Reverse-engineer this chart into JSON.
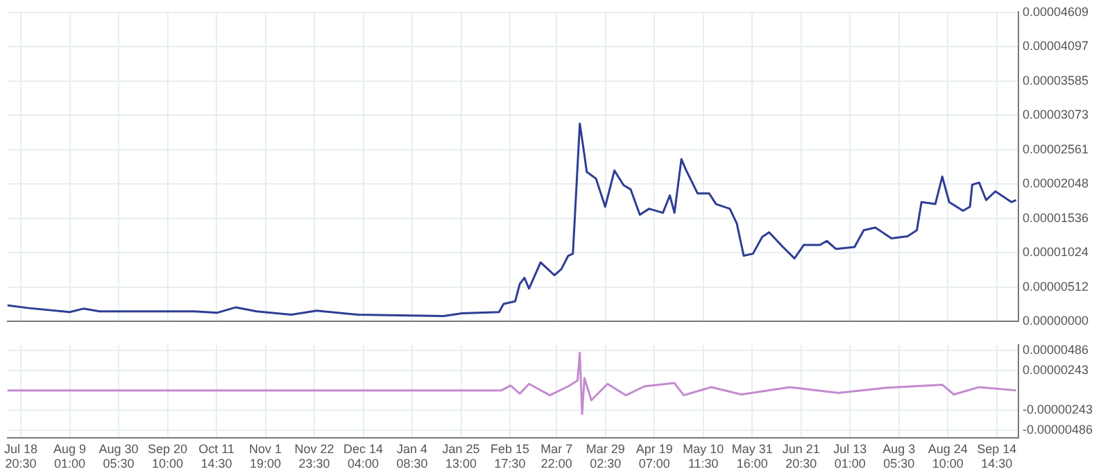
{
  "chart_data": [
    {
      "type": "line",
      "tick_labels": "y",
      "grid": true,
      "x": [
        "2017-07-13",
        "2017-07-22",
        "2017-08-09",
        "2017-08-15",
        "2017-08-22",
        "2017-10-02",
        "2017-10-12",
        "2017-10-20",
        "2017-10-29",
        "2017-11-13",
        "2017-11-24",
        "2017-12-12",
        "2018-01-18",
        "2018-01-26",
        "2018-02-11",
        "2018-02-13",
        "2018-02-18",
        "2018-02-20",
        "2018-02-22",
        "2018-02-24",
        "2018-03-01",
        "2018-03-07",
        "2018-03-10",
        "2018-03-13",
        "2018-03-15",
        "2018-03-18",
        "2018-03-20",
        "2018-03-21",
        "2018-03-25",
        "2018-03-29",
        "2018-04-02",
        "2018-04-06",
        "2018-04-09",
        "2018-04-13",
        "2018-04-17",
        "2018-04-23",
        "2018-04-26",
        "2018-04-28",
        "2018-05-01",
        "2018-05-03",
        "2018-05-08",
        "2018-05-13",
        "2018-05-16",
        "2018-05-22",
        "2018-05-25",
        "2018-05-28",
        "2018-06-01",
        "2018-06-05",
        "2018-06-08",
        "2018-06-14",
        "2018-06-19",
        "2018-06-23",
        "2018-06-30",
        "2018-07-03",
        "2018-07-07",
        "2018-07-15",
        "2018-07-19",
        "2018-07-24",
        "2018-07-31",
        "2018-08-07",
        "2018-08-11",
        "2018-08-13",
        "2018-08-19",
        "2018-08-22",
        "2018-08-25",
        "2018-08-31",
        "2018-09-03",
        "2018-09-04",
        "2018-09-07",
        "2018-09-10",
        "2018-09-14",
        "2018-09-21",
        "2018-09-23"
      ],
      "series": [
        {
          "color": "#2e3d94",
          "values": [
            2.4e-06,
            2e-06,
            1.4e-06,
            1.9e-06,
            1.5e-06,
            1.5e-06,
            1.3e-06,
            2.1e-06,
            1.5e-06,
            1e-06,
            1.6e-06,
            1e-06,
            8e-07,
            1.2e-06,
            1.4e-06,
            2.6e-06,
            3e-06,
            5.6e-06,
            6.5e-06,
            4.9e-06,
            8.8e-06,
            6.9e-06,
            7.8e-06,
            9.8e-06,
            1.01e-05,
            2.95e-05,
            2.48e-05,
            2.23e-05,
            2.13e-05,
            1.71e-05,
            2.25e-05,
            2.03e-05,
            1.97e-05,
            1.59e-05,
            1.68e-05,
            1.62e-05,
            1.88e-05,
            1.62e-05,
            2.42e-05,
            2.26e-05,
            1.91e-05,
            1.91e-05,
            1.75e-05,
            1.68e-05,
            1.46e-05,
            9.8e-06,
            1.01e-05,
            1.26e-05,
            1.33e-05,
            1.11e-05,
            9.4e-06,
            1.14e-05,
            1.14e-05,
            1.2e-05,
            1.08e-05,
            1.11e-05,
            1.36e-05,
            1.4e-05,
            1.24e-05,
            1.27e-05,
            1.36e-05,
            1.78e-05,
            1.75e-05,
            2.16e-05,
            1.78e-05,
            1.65e-05,
            1.71e-05,
            2.04e-05,
            2.07e-05,
            1.81e-05,
            1.94e-05,
            1.78e-05,
            1.81e-05
          ]
        }
      ],
      "xlim": [
        "2017-07-13",
        "2018-09-24"
      ],
      "xticks": [
        "2017-07-18T20:30",
        "2017-08-09T01:00",
        "2017-08-30T05:30",
        "2017-09-20T10:00",
        "2017-10-11T14:30",
        "2017-11-01T19:00",
        "2017-11-22T23:30",
        "2017-12-14T04:00",
        "2018-01-04T08:30",
        "2018-01-25T13:00",
        "2018-02-15T17:30",
        "2018-03-07T22:00",
        "2018-03-29T02:30",
        "2018-04-19T07:00",
        "2018-05-10T11:30",
        "2018-05-31T16:00",
        "2018-06-21T20:30",
        "2018-07-13T01:00",
        "2018-08-03T05:30",
        "2018-08-24T10:00",
        "2018-09-14T14:30"
      ],
      "ylim": [
        0,
        4.62e-05
      ],
      "yticks": [
        {
          "value": 0,
          "label": "0.00000000"
        },
        {
          "value": 5.12e-06,
          "label": "0.00000512"
        },
        {
          "value": 1.024e-05,
          "label": "0.00001024"
        },
        {
          "value": 1.536e-05,
          "label": "0.00001536"
        },
        {
          "value": 2.048e-05,
          "label": "0.00002048"
        },
        {
          "value": 2.561e-05,
          "label": "0.00002561"
        },
        {
          "value": 3.073e-05,
          "label": "0.00003073"
        },
        {
          "value": 3.585e-05,
          "label": "0.00003585"
        },
        {
          "value": 4.097e-05,
          "label": "0.00004097"
        },
        {
          "value": 4.609e-05,
          "label": "0.00004609"
        }
      ]
    },
    {
      "type": "line",
      "grid": true,
      "x": [
        "2017-07-13",
        "2018-02-12",
        "2018-02-16",
        "2018-02-20",
        "2018-02-24",
        "2018-03-05",
        "2018-03-13",
        "2018-03-17",
        "2018-03-18",
        "2018-03-19",
        "2018-03-20",
        "2018-03-23",
        "2018-03-30",
        "2018-04-07",
        "2018-04-15",
        "2018-04-28",
        "2018-05-02",
        "2018-05-14",
        "2018-05-27",
        "2018-06-17",
        "2018-07-08",
        "2018-07-28",
        "2018-08-22",
        "2018-08-27",
        "2018-09-07",
        "2018-09-23"
      ],
      "series": [
        {
          "color": "#c48ad0",
          "values": [
            0,
            0,
            6e-07,
            -4e-07,
            8e-07,
            -6e-07,
            5e-07,
            1.2e-06,
            4.6e-06,
            -2.9e-06,
            1.5e-06,
            -1.2e-06,
            8e-07,
            -6e-07,
            5e-07,
            9e-07,
            -6e-07,
            4e-07,
            -5e-07,
            4e-07,
            -3e-07,
            3e-07,
            7e-07,
            -5e-07,
            4e-07,
            0
          ]
        }
      ],
      "xlim": [
        "2017-07-13",
        "2018-09-24"
      ],
      "xticks": [
        {
          "value": "2017-07-18T20:30",
          "label": "Jul 18\n20:30"
        },
        {
          "value": "2017-08-09T01:00",
          "label": "Aug 9\n01:00"
        },
        {
          "value": "2017-08-30T05:30",
          "label": "Aug 30\n05:30"
        },
        {
          "value": "2017-09-20T10:00",
          "label": "Sep 20\n10:00"
        },
        {
          "value": "2017-10-11T14:30",
          "label": "Oct 11\n14:30"
        },
        {
          "value": "2017-11-01T19:00",
          "label": "Nov 1\n19:00"
        },
        {
          "value": "2017-11-22T23:30",
          "label": "Nov 22\n23:30"
        },
        {
          "value": "2017-12-14T04:00",
          "label": "Dec 14\n04:00"
        },
        {
          "value": "2018-01-04T08:30",
          "label": "Jan 4\n08:30"
        },
        {
          "value": "2018-01-25T13:00",
          "label": "Jan 25\n13:00"
        },
        {
          "value": "2018-02-15T17:30",
          "label": "Feb 15\n17:30"
        },
        {
          "value": "2018-03-07T22:00",
          "label": "Mar 7\n22:00"
        },
        {
          "value": "2018-03-29T02:30",
          "label": "Mar 29\n02:30"
        },
        {
          "value": "2018-04-19T07:00",
          "label": "Apr 19\n07:00"
        },
        {
          "value": "2018-05-10T11:30",
          "label": "May 10\n11:30"
        },
        {
          "value": "2018-05-31T16:00",
          "label": "May 31\n16:00"
        },
        {
          "value": "2018-06-21T20:30",
          "label": "Jun 21\n20:30"
        },
        {
          "value": "2018-07-13T01:00",
          "label": "Jul 13\n01:00"
        },
        {
          "value": "2018-08-03T05:30",
          "label": "Aug 3\n05:30"
        },
        {
          "value": "2018-08-24T10:00",
          "label": "Aug 24\n10:00"
        },
        {
          "value": "2018-09-14T14:30",
          "label": "Sep 14\n14:30"
        }
      ],
      "ylim": [
        -5.8e-06,
        5.6e-06
      ],
      "yticks": [
        {
          "value": -4.86e-06,
          "label": "-0.00000486"
        },
        {
          "value": -2.43e-06,
          "label": "-0.00000243"
        },
        {
          "value": 2.43e-06,
          "label": "0.00000243"
        },
        {
          "value": 4.86e-06,
          "label": "0.00000486"
        }
      ]
    }
  ]
}
